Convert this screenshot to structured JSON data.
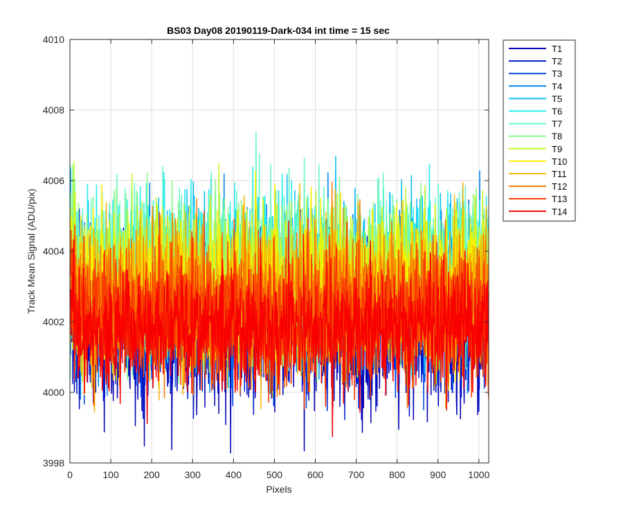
{
  "chart_data": {
    "type": "line",
    "title": "BS03 Day08 20190119-Dark-034 int time = 15 sec",
    "xlabel": "Pixels",
    "ylabel": "Track Mean Signal (ADU/pix)",
    "xlim": [
      0,
      1024
    ],
    "ylim": [
      3998,
      4010
    ],
    "xticks": [
      0,
      100,
      200,
      300,
      400,
      500,
      600,
      700,
      800,
      900,
      1000
    ],
    "yticks": [
      3998,
      4000,
      4002,
      4004,
      4006,
      4008,
      4010
    ],
    "grid": true,
    "legend_position": "outside-right",
    "n_points": 1024,
    "series": [
      {
        "name": "T1",
        "color": "#0000B4",
        "mean": 4001.9,
        "noise": 1.15,
        "low": 3998.2,
        "high": 4007.0
      },
      {
        "name": "T2",
        "color": "#0019CC",
        "mean": 4002.1,
        "noise": 1.05,
        "low": 3999.2,
        "high": 4007.2
      },
      {
        "name": "T3",
        "color": "#0044E6",
        "mean": 4002.4,
        "noise": 1.05,
        "low": 3999.5,
        "high": 4007.5
      },
      {
        "name": "T4",
        "color": "#0083F0",
        "mean": 4002.8,
        "noise": 1.05,
        "low": 3999.7,
        "high": 4008.1
      },
      {
        "name": "T5",
        "color": "#0ABEF5",
        "mean": 4003.2,
        "noise": 1.05,
        "low": 3999.9,
        "high": 4008.0
      },
      {
        "name": "T6",
        "color": "#22EEEE",
        "mean": 4003.5,
        "noise": 1.05,
        "low": 4000.2,
        "high": 4008.0
      },
      {
        "name": "T7",
        "color": "#66F8C4",
        "mean": 4003.5,
        "noise": 1.05,
        "low": 4000.2,
        "high": 4007.9
      },
      {
        "name": "T8",
        "color": "#88F888",
        "mean": 4003.3,
        "noise": 1.05,
        "low": 4000.2,
        "high": 4007.8
      },
      {
        "name": "T9",
        "color": "#C4F830",
        "mean": 4003.2,
        "noise": 1.05,
        "low": 4000.1,
        "high": 4007.6
      },
      {
        "name": "T10",
        "color": "#F8F000",
        "mean": 4003.0,
        "noise": 1.05,
        "low": 4000.0,
        "high": 4007.4
      },
      {
        "name": "T11",
        "color": "#F8B400",
        "mean": 4002.7,
        "noise": 1.05,
        "low": 3999.4,
        "high": 4008.4
      },
      {
        "name": "T12",
        "color": "#F87800",
        "mean": 4002.4,
        "noise": 1.0,
        "low": 3999.5,
        "high": 4007.2
      },
      {
        "name": "T13",
        "color": "#F83C00",
        "mean": 4002.2,
        "noise": 1.0,
        "low": 3999.5,
        "high": 4006.8
      },
      {
        "name": "T14",
        "color": "#F80000",
        "mean": 4001.8,
        "noise": 0.85,
        "low": 3998.6,
        "high": 4006.4
      }
    ]
  }
}
